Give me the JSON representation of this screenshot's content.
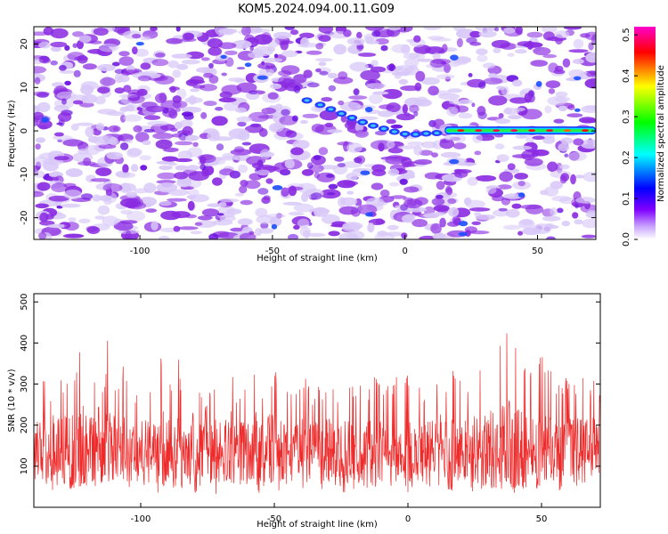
{
  "title": "KOM5.2024.094.00.11.G09",
  "colors": {
    "background": "#ffffff",
    "snr_line": "#ee2a2a",
    "speckle_purple": "#8a2be2",
    "speckle_light": "#d8c8f8"
  },
  "chart_data": [
    {
      "id": "spectrogram",
      "type": "heatmap",
      "title": "KOM5.2024.094.00.11.G09",
      "xlabel": "Height of straight line (km)",
      "ylabel": "Frequency (Hz)",
      "xlim": [
        -140,
        72
      ],
      "ylim": [
        -25,
        24
      ],
      "x_ticks": [
        -100,
        -50,
        0,
        50
      ],
      "y_ticks": [
        -20,
        -10,
        0,
        10,
        20
      ],
      "x_tick_labels": [
        "-100",
        "-50",
        "0",
        "50"
      ],
      "y_tick_labels": [
        "-20",
        "-10",
        "0",
        "10",
        "20"
      ],
      "colorbar": {
        "label": "Normalized spectral amplitude",
        "range": [
          0,
          0.52
        ],
        "ticks": [
          0.0,
          0.1,
          0.2,
          0.3,
          0.4,
          0.5
        ],
        "tick_labels": [
          "0.0",
          "0.1",
          "0.2",
          "0.3",
          "0.4",
          "0.5"
        ],
        "colors": [
          "#ffffff",
          "#8000ff",
          "#0000ff",
          "#00ffff",
          "#00ff00",
          "#ffff00",
          "#ff0000",
          "#ff00ff"
        ]
      },
      "features": [
        {
          "name": "descending_trace",
          "x": [
            -37,
            -32,
            -28,
            -24,
            -20,
            -16,
            -12,
            -8,
            -4,
            0,
            4,
            8,
            12
          ],
          "y": [
            7,
            6,
            5,
            4,
            3,
            2,
            1.2,
            0.5,
            -0.2,
            -0.7,
            -0.8,
            -0.6,
            -0.5
          ],
          "amplitude": 0.12
        },
        {
          "name": "constant_line",
          "x": [
            15,
            72
          ],
          "y": [
            0.1,
            0.1
          ],
          "amplitude": 0.48
        }
      ],
      "background_amplitude": 0.05
    },
    {
      "id": "snr",
      "type": "line",
      "xlabel": "Height of straight line (km)",
      "ylabel": "SNR (10 * v/v)",
      "xlim": [
        -140,
        72
      ],
      "ylim": [
        0,
        520
      ],
      "x_ticks": [
        -100,
        -50,
        0,
        50
      ],
      "y_ticks": [
        100,
        200,
        300,
        400,
        500
      ],
      "x_tick_labels": [
        "-100",
        "-50",
        "0",
        "50"
      ],
      "y_tick_labels": [
        "100",
        "200",
        "300",
        "400",
        "500"
      ],
      "series": [
        {
          "color": "#ee2a2a",
          "x": [
            -140,
            -138,
            -136,
            -134,
            -132,
            -130,
            -128,
            -126,
            -124,
            -122,
            -120,
            -118,
            -116,
            -114,
            -112,
            -110,
            -108,
            -106,
            -104,
            -102,
            -100,
            -98,
            -96,
            -94,
            -92,
            -90,
            -88,
            -86,
            -84,
            -82,
            -80,
            -78,
            -76,
            -74,
            -72,
            -70,
            -68,
            -66,
            -64,
            -62,
            -60,
            -58,
            -56,
            -54,
            -52,
            -50,
            -48,
            -46,
            -44,
            -42,
            -40,
            -38,
            -36,
            -34,
            -32,
            -30,
            -28,
            -26,
            -24,
            -22,
            -20,
            -18,
            -16,
            -14,
            -12,
            -10,
            -8,
            -6,
            -4,
            -2,
            0,
            2,
            4,
            6,
            8,
            10,
            12,
            14,
            16,
            18,
            20,
            22,
            24,
            26,
            28,
            30,
            32,
            34,
            36,
            38,
            40,
            42,
            44,
            46,
            48,
            50,
            52,
            54,
            56,
            58,
            60,
            62,
            64,
            66,
            68,
            70,
            72
          ],
          "upper": [
            330,
            250,
            350,
            270,
            360,
            310,
            340,
            380,
            330,
            510,
            290,
            360,
            270,
            300,
            440,
            310,
            300,
            380,
            250,
            290,
            320,
            350,
            280,
            310,
            380,
            290,
            310,
            370,
            250,
            300,
            380,
            290,
            270,
            310,
            340,
            260,
            300,
            380,
            250,
            300,
            300,
            320,
            390,
            280,
            330,
            350,
            300,
            280,
            320,
            310,
            300,
            330,
            260,
            300,
            280,
            340,
            300,
            270,
            330,
            290,
            310,
            340,
            280,
            300,
            360,
            280,
            320,
            300,
            330,
            270,
            350,
            300,
            320,
            280,
            330,
            300,
            340,
            310,
            380,
            330,
            350,
            300,
            370,
            330,
            400,
            360,
            380,
            400,
            420,
            480,
            430,
            400,
            380,
            360,
            350,
            380,
            330,
            350,
            300,
            320,
            340,
            330,
            310,
            340,
            300,
            320,
            290
          ],
          "lower": [
            70,
            40,
            60,
            50,
            30,
            70,
            50,
            40,
            30,
            60,
            50,
            30,
            60,
            40,
            50,
            30,
            60,
            40,
            50,
            30,
            60,
            40,
            50,
            30,
            40,
            60,
            30,
            50,
            40,
            60,
            30,
            50,
            40,
            60,
            30,
            50,
            40,
            60,
            30,
            50,
            40,
            60,
            30,
            50,
            40,
            60,
            30,
            50,
            40,
            60,
            30,
            50,
            40,
            60,
            30,
            50,
            40,
            60,
            30,
            50,
            40,
            60,
            30,
            50,
            40,
            60,
            30,
            50,
            40,
            60,
            30,
            50,
            40,
            60,
            30,
            50,
            40,
            60,
            30,
            50,
            40,
            60,
            30,
            50,
            40,
            60,
            30,
            50,
            40,
            60,
            30,
            50,
            40,
            60,
            30,
            50,
            40,
            60,
            30,
            50,
            40,
            60,
            30,
            50,
            40,
            60,
            30
          ],
          "typical_center": 140
        }
      ]
    }
  ]
}
